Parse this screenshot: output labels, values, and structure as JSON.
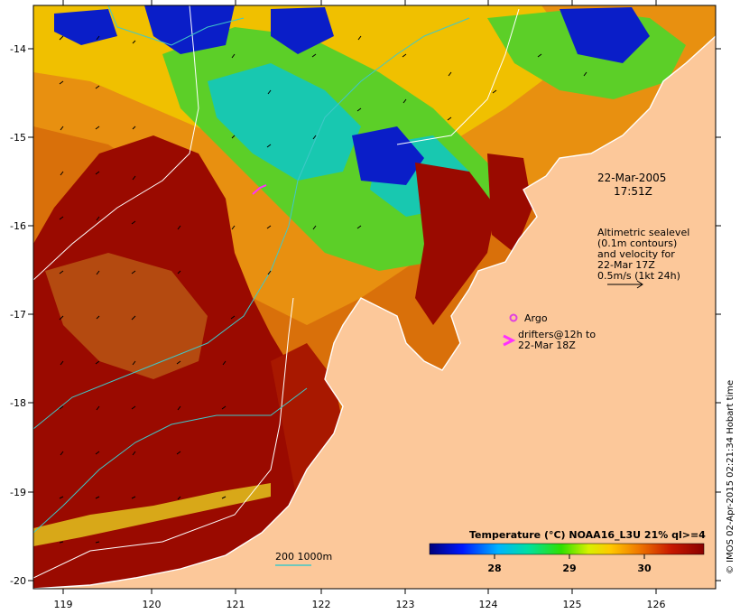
{
  "map": {
    "date": "22-Mar-2005",
    "time": "17:51Z",
    "x_ticks": [
      "119",
      "120",
      "121",
      "122",
      "123",
      "124",
      "125",
      "126"
    ],
    "y_ticks": [
      "-14",
      "-15",
      "-16",
      "-17",
      "-18",
      "-19",
      "-20"
    ],
    "sealevel_note": [
      "Altimetric sealevel",
      "(0.1m contours)",
      "and velocity for",
      "22-Mar 17Z",
      "0.5m/s (1kt 24h)"
    ],
    "argo_label": "Argo",
    "drifters_label": [
      "drifters@12h to",
      "22-Mar 18Z"
    ],
    "depth_label": "200  1000m",
    "colorbar": {
      "title": "Temperature (°C) NOAA16_L3U 21% ql>=4",
      "ticks": [
        "28",
        "29",
        "30"
      ]
    },
    "credit": "© IMOS 02-Apr-2015 02:21:34 Hobart time",
    "colors": {
      "land": "#fcc89a",
      "warm": "#9a0a00",
      "isobath_200": "#40c8c8",
      "isobath_1000": "#ffffff",
      "argo": "#e040e0",
      "drifter": "#ff30ff"
    }
  }
}
